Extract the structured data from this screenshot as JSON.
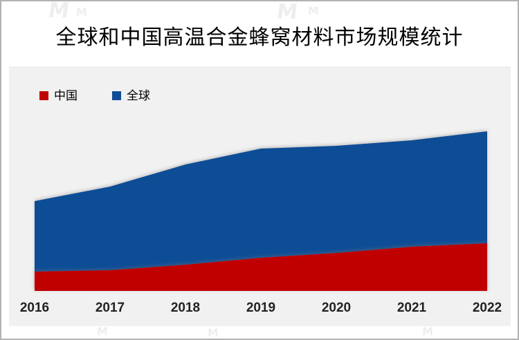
{
  "title": "全球和中国高温合金蜂窝材料市场规模统计",
  "watermark": {
    "symbol": "M"
  },
  "legend": {
    "items": [
      {
        "label": "中国",
        "color": "#c00404"
      },
      {
        "label": "全球",
        "color": "#0f4e96"
      }
    ]
  },
  "panel": {
    "background": "#f1f1f1"
  },
  "chart_data": {
    "type": "area",
    "stacked": false,
    "overlapping": true,
    "title": "全球和中国高温合金蜂窝材料市场规模统计",
    "categories": [
      "2016",
      "2017",
      "2018",
      "2019",
      "2020",
      "2021",
      "2022"
    ],
    "series": [
      {
        "name": "全球",
        "color": "#0f4e96",
        "values": [
          130,
          151,
          183,
          206,
          210,
          218,
          231
        ]
      },
      {
        "name": "中国",
        "color": "#c00404",
        "values": [
          28,
          30,
          38,
          48,
          55,
          64,
          69
        ]
      }
    ],
    "xlabel": "",
    "ylabel": "",
    "ylim": [
      0,
      325
    ],
    "y_axis_visible": false,
    "grid": false,
    "legend_position": "top-left",
    "note": "无可见数值轴，数值为按像素高度估算的相对规模"
  }
}
